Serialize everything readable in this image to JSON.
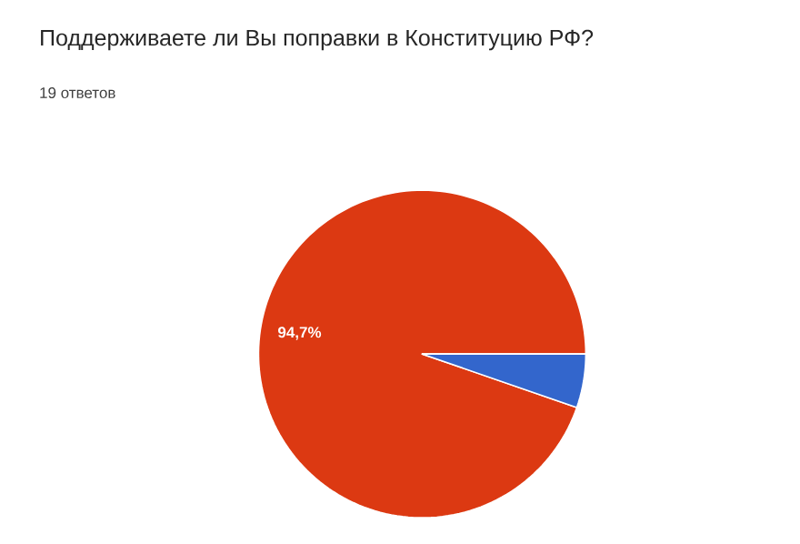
{
  "chart_data": {
    "type": "pie",
    "title": "Поддерживаете ли Вы поправки в Конституцию РФ?",
    "subtitle": "19 ответов",
    "categories": [
      null,
      null
    ],
    "values": [
      94.7,
      5.3
    ],
    "colors": [
      "#dc3912",
      "#3366cc"
    ],
    "value_labels": [
      "94,7%",
      null
    ]
  }
}
